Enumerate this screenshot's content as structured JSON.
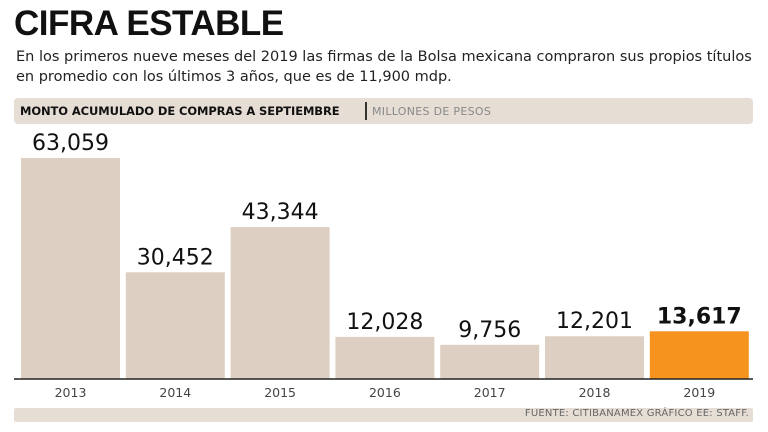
{
  "header": {
    "title": "CIFRA ESTABLE",
    "subtitle": "En los primeros nueve meses del 2019 las firmas de la Bolsa mexicana compraron sus propios títulos en promedio con los últimos 3 años, que es de 11,900 mdp."
  },
  "band": {
    "label": "MONTO ACUMULADO DE COMPRAS A SEPTIEMBRE",
    "units": "MILLONES DE PESOS"
  },
  "colors": {
    "bar": "#ddd0c3",
    "highlight": "#f6931e",
    "band": "#e6ddd5"
  },
  "chart_data": {
    "type": "bar",
    "title": "MONTO ACUMULADO DE COMPRAS A SEPTIEMBRE",
    "ylabel": "MILLONES DE PESOS",
    "xlabel": "",
    "categories": [
      "2013",
      "2014",
      "2015",
      "2016",
      "2017",
      "2018",
      "2019"
    ],
    "values": [
      63059,
      30452,
      43344,
      12028,
      9756,
      12201,
      13617
    ],
    "value_labels": [
      "63,059",
      "30,452",
      "43,344",
      "12,028",
      "9,756",
      "12,201",
      "13,617"
    ],
    "highlight_index": 6,
    "ylim": [
      0,
      63059
    ],
    "grid": false
  },
  "footer": {
    "source": "FUENTE: CITIBANAMEX GRÁFICO EE: STAFF."
  }
}
